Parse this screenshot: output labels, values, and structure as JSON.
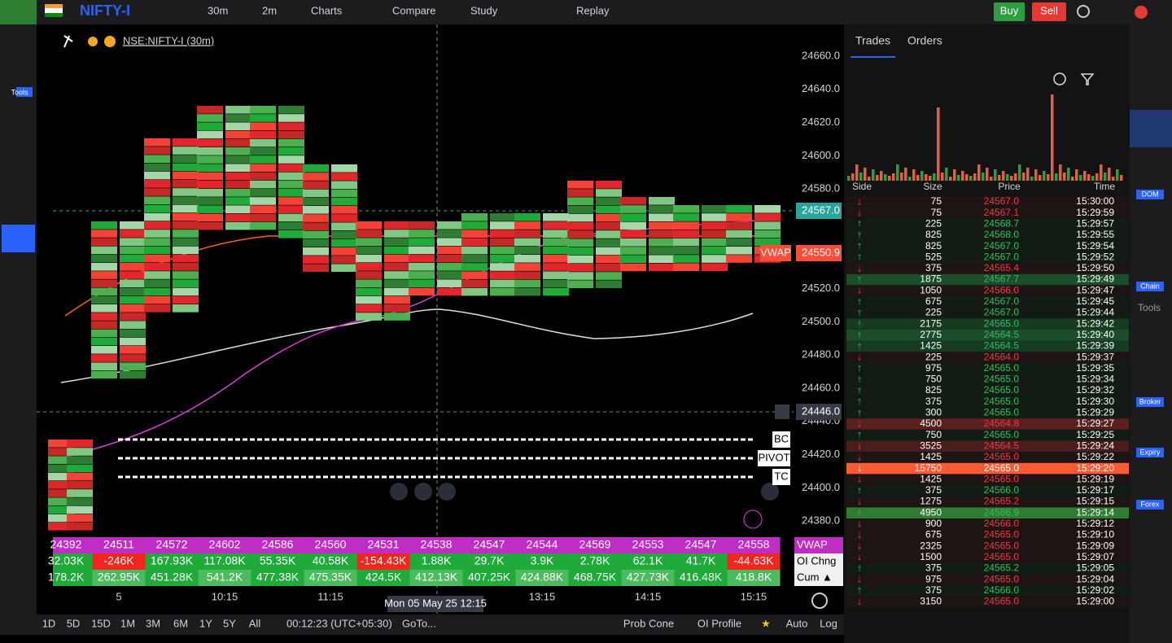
{
  "toolbar": {
    "symbol": "NIFTY-I",
    "items": [
      "30m",
      "2m",
      "Charts",
      "Compare",
      "Study",
      "Replay"
    ],
    "buy": "Buy",
    "sell": "Sell"
  },
  "left_toolbar": {
    "label": "Tools"
  },
  "chart": {
    "symbol_label": "NSE:NIFTY-I (30m)",
    "price_labels": [
      "24660.0",
      "24640.0",
      "24620.0",
      "24600.0",
      "24580.0",
      "24520.0",
      "24500.0",
      "24480.0",
      "24460.0",
      "24440.0",
      "24420.0",
      "24400.0",
      "24380.0"
    ],
    "last_price": "24567.0",
    "vwap_tag": "VWAP",
    "vwap_price": "24550.9",
    "crosshair_price": "24446.0",
    "pivots": [
      "BC",
      "PIVOT",
      "TC"
    ],
    "time_labels": [
      "5",
      "10:15",
      "11:15",
      "13:15",
      "14:15",
      "15:15"
    ],
    "crosshair_time": "Mon 05 May 25 12:15"
  },
  "indicator_table": {
    "rows": [
      {
        "label": "VWAP",
        "values": [
          "24392",
          "24511",
          "24572",
          "24602",
          "24586",
          "24560",
          "24531",
          "24538",
          "24547",
          "24544",
          "24569",
          "24553",
          "24547",
          "24558"
        ]
      },
      {
        "label": "OI Chng",
        "values": [
          "32.03K",
          "-246K",
          "167.93K",
          "117.08K",
          "55.35K",
          "40.58K",
          "-154.43K",
          "1.88K",
          "29.7K",
          "3.9K",
          "2.78K",
          "62.1K",
          "41.7K",
          "-44.63K"
        ]
      },
      {
        "label": "Cum ▲",
        "values": [
          "178.2K",
          "262.95K",
          "451.28K",
          "541.2K",
          "477.38K",
          "475.35K",
          "424.5K",
          "412.13K",
          "407.25K",
          "424.88K",
          "468.75K",
          "427.73K",
          "416.48K",
          "418.8K"
        ]
      }
    ]
  },
  "bottom_bar": {
    "ranges": [
      "1D",
      "5D",
      "15D",
      "1M",
      "3M",
      "6M",
      "1Y",
      "5Y",
      "All"
    ],
    "clock": "00:12:23 (UTC+05:30)",
    "goto": "GoTo...",
    "right": [
      "Prob Cone",
      "OI Profile",
      "Auto",
      "Log"
    ]
  },
  "trades_panel": {
    "tabs": [
      "Trades",
      "Orders"
    ],
    "columns": [
      "Side",
      "Size",
      "Price",
      "Time"
    ],
    "rows": [
      [
        "↓",
        "75",
        "24567.0",
        "15:30:00"
      ],
      [
        "↓",
        "75",
        "24567.1",
        "15:29:59"
      ],
      [
        "↑",
        "225",
        "24568.7",
        "15:29:57"
      ],
      [
        "↑",
        "825",
        "24568.0",
        "15:29:55"
      ],
      [
        "↑",
        "825",
        "24567.0",
        "15:29:54"
      ],
      [
        "↑",
        "525",
        "24567.0",
        "15:29:52"
      ],
      [
        "↓",
        "375",
        "24565.4",
        "15:29:50"
      ],
      [
        "↑",
        "1875",
        "24567.7",
        "15:29:49"
      ],
      [
        "↓",
        "1050",
        "24566.0",
        "15:29:47"
      ],
      [
        "↑",
        "675",
        "24567.0",
        "15:29:45"
      ],
      [
        "↑",
        "225",
        "24567.0",
        "15:29:44"
      ],
      [
        "↑",
        "2175",
        "24565.0",
        "15:29:42"
      ],
      [
        "↑",
        "2775",
        "24564.5",
        "15:29:40"
      ],
      [
        "↑",
        "1425",
        "24564.5",
        "15:29:39"
      ],
      [
        "↓",
        "225",
        "24564.0",
        "15:29:37"
      ],
      [
        "↑",
        "975",
        "24565.0",
        "15:29:35"
      ],
      [
        "↑",
        "750",
        "24565.0",
        "15:29:34"
      ],
      [
        "↑",
        "825",
        "24565.0",
        "15:29:32"
      ],
      [
        "↑",
        "375",
        "24565.0",
        "15:29:30"
      ],
      [
        "↑",
        "300",
        "24565.0",
        "15:29:29"
      ],
      [
        "↓",
        "4500",
        "24564.8",
        "15:29:27"
      ],
      [
        "↑",
        "750",
        "24565.0",
        "15:29:25"
      ],
      [
        "↓",
        "3525",
        "24564.5",
        "15:29:24"
      ],
      [
        "↓",
        "1425",
        "24565.0",
        "15:29:22"
      ],
      [
        "↓",
        "15750",
        "24565.0",
        "15:29:20"
      ],
      [
        "↓",
        "1425",
        "24565.0",
        "15:29:19"
      ],
      [
        "↑",
        "375",
        "24566.0",
        "15:29:17"
      ],
      [
        "↓",
        "1275",
        "24565.2",
        "15:29:15"
      ],
      [
        "↑",
        "4950",
        "24566.9",
        "15:29:14"
      ],
      [
        "↓",
        "900",
        "24566.0",
        "15:29:12"
      ],
      [
        "↓",
        "675",
        "24565.0",
        "15:29:10"
      ],
      [
        "↓",
        "2325",
        "24565.0",
        "15:29:09"
      ],
      [
        "↓",
        "1500",
        "24565.0",
        "15:29:07"
      ],
      [
        "↑",
        "375",
        "24565.2",
        "15:29:05"
      ],
      [
        "↓",
        "975",
        "24565.0",
        "15:29:04"
      ],
      [
        "↑",
        "375",
        "24566.0",
        "15:29:02"
      ],
      [
        "↓",
        "3150",
        "24565.0",
        "15:29:00"
      ]
    ]
  },
  "right_sidebar": {
    "labels": [
      "DOM",
      "Chain",
      "Tools",
      "Broker",
      "Expiry",
      "Forex"
    ]
  }
}
